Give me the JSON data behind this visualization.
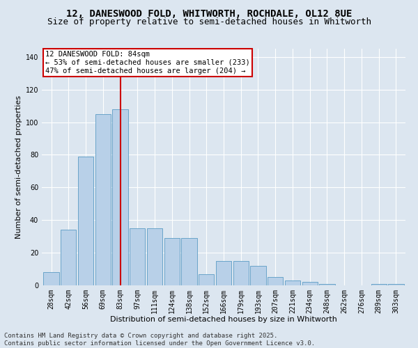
{
  "title_line1": "12, DANESWOOD FOLD, WHITWORTH, ROCHDALE, OL12 8UE",
  "title_line2": "Size of property relative to semi-detached houses in Whitworth",
  "xlabel": "Distribution of semi-detached houses by size in Whitworth",
  "ylabel": "Number of semi-detached properties",
  "footnote": "Contains HM Land Registry data © Crown copyright and database right 2025.\nContains public sector information licensed under the Open Government Licence v3.0.",
  "bin_labels": [
    "28sqm",
    "42sqm",
    "56sqm",
    "69sqm",
    "83sqm",
    "97sqm",
    "111sqm",
    "124sqm",
    "138sqm",
    "152sqm",
    "166sqm",
    "179sqm",
    "193sqm",
    "207sqm",
    "221sqm",
    "234sqm",
    "248sqm",
    "262sqm",
    "276sqm",
    "289sqm",
    "303sqm"
  ],
  "bar_values": [
    8,
    34,
    79,
    105,
    108,
    35,
    35,
    29,
    29,
    7,
    15,
    15,
    12,
    5,
    3,
    2,
    1,
    0,
    0,
    1,
    1
  ],
  "bar_color": "#b8d0e8",
  "bar_edge_color": "#5a9bc4",
  "vline_x_index": 4,
  "vline_color": "#cc0000",
  "annotation_text": "12 DANESWOOD FOLD: 84sqm\n← 53% of semi-detached houses are smaller (233)\n47% of semi-detached houses are larger (204) →",
  "annotation_box_facecolor": "#ffffff",
  "annotation_box_edgecolor": "#cc0000",
  "ylim": [
    0,
    145
  ],
  "yticks": [
    0,
    20,
    40,
    60,
    80,
    100,
    120,
    140
  ],
  "background_color": "#dce6f0",
  "plot_background_color": "#dce6f0",
  "grid_color": "#ffffff",
  "title1_fontsize": 10,
  "title2_fontsize": 9,
  "axis_label_fontsize": 8,
  "tick_label_fontsize": 7,
  "annotation_fontsize": 7.5,
  "footnote_fontsize": 6.5
}
